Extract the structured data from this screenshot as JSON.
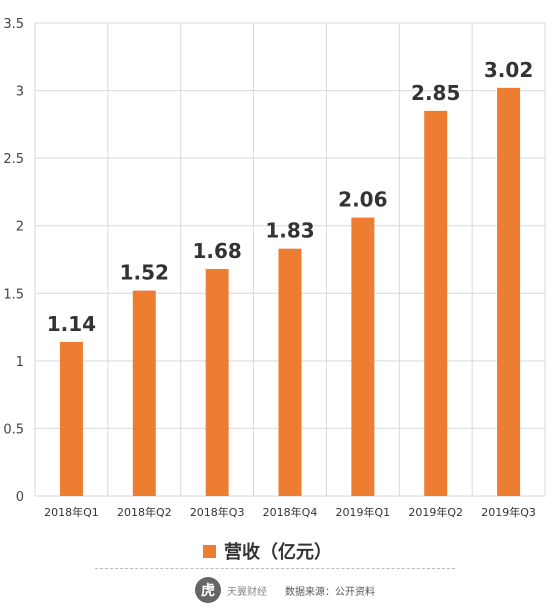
{
  "chart_data": {
    "type": "bar",
    "categories": [
      "2018年Q1",
      "2018年Q2",
      "2018年Q3",
      "2018年Q4",
      "2019年Q1",
      "2019年Q2",
      "2019年Q3"
    ],
    "series": [
      {
        "name": "营收（亿元）",
        "values": [
          1.14,
          1.52,
          1.68,
          1.83,
          2.06,
          2.85,
          3.02
        ]
      }
    ],
    "data_labels": [
      "1.14",
      "1.52",
      "1.68",
      "1.83",
      "2.06",
      "2.85",
      "3.02"
    ],
    "ylim": [
      0,
      3.5
    ],
    "yticks": [
      0,
      0.5,
      1,
      1.5,
      2,
      2.5,
      3,
      3.5
    ],
    "ytick_labels": [
      "0",
      "0.5",
      "1",
      "1.5",
      "2",
      "2.5",
      "3",
      "3.5"
    ],
    "grid": true,
    "legend_position": "bottom",
    "bar_color": "#ED7D31"
  },
  "legend": {
    "label": "营收（亿元）"
  },
  "footer": {
    "logo_char": "虎",
    "brand": "天翼财经",
    "source": "数据来源：公开资料"
  }
}
